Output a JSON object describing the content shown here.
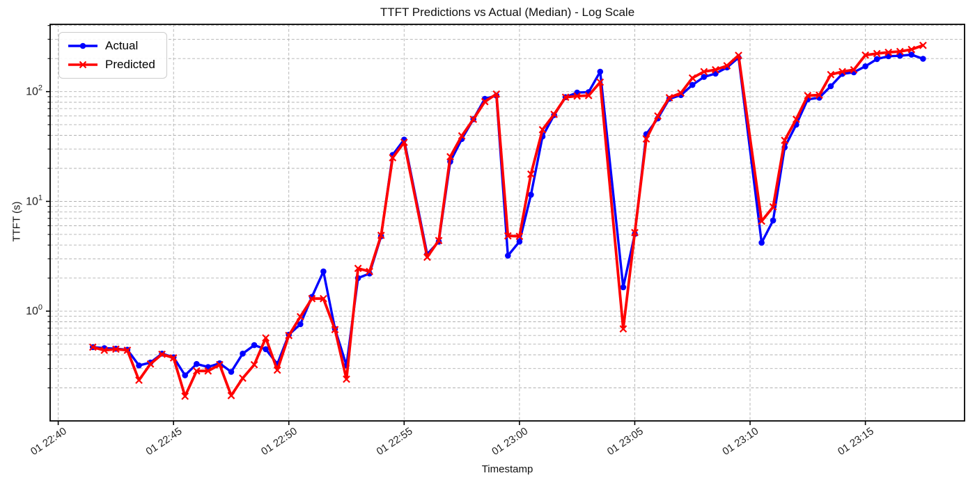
{
  "chart_data": {
    "type": "line",
    "title": "TTFT Predictions vs Actual (Median) - Log Scale",
    "xlabel": "Timestamp",
    "ylabel": "TTFT (s)",
    "yscale": "log",
    "grid": true,
    "background_color": "#ffffff",
    "grid_color": "#b0b0b0",
    "axis_color": "#000000",
    "xlim": [
      "22:39:39",
      "23:19:18"
    ],
    "ylim": [
      0.1,
      410
    ],
    "x_ticks": [
      {
        "t": "22:40:00",
        "label": "01 22:40"
      },
      {
        "t": "22:45:00",
        "label": "01 22:45"
      },
      {
        "t": "22:50:00",
        "label": "01 22:50"
      },
      {
        "t": "22:55:00",
        "label": "01 22:55"
      },
      {
        "t": "23:00:00",
        "label": "01 23:00"
      },
      {
        "t": "23:05:00",
        "label": "01 23:05"
      },
      {
        "t": "23:10:00",
        "label": "01 23:10"
      },
      {
        "t": "23:15:00",
        "label": "01 23:15"
      }
    ],
    "y_ticks": [
      {
        "v": 1,
        "base": "10",
        "exp": "0"
      },
      {
        "v": 10,
        "base": "10",
        "exp": "1"
      },
      {
        "v": 100,
        "base": "10",
        "exp": "2"
      }
    ],
    "x": [
      "22:41:30",
      "22:42:00",
      "22:42:30",
      "22:43:00",
      "22:43:30",
      "22:44:00",
      "22:44:30",
      "22:45:00",
      "22:45:30",
      "22:46:00",
      "22:46:30",
      "22:47:00",
      "22:47:30",
      "22:48:00",
      "22:48:30",
      "22:49:00",
      "22:49:30",
      "22:50:00",
      "22:50:30",
      "22:51:00",
      "22:51:30",
      "22:52:00",
      "22:52:30",
      "22:53:00",
      "22:53:30",
      "22:54:00",
      "22:54:30",
      "22:55:00",
      "22:56:00",
      "22:56:30",
      "22:57:00",
      "22:57:30",
      "22:58:00",
      "22:58:30",
      "22:59:00",
      "22:59:30",
      "23:00:00",
      "23:00:30",
      "23:01:00",
      "23:01:30",
      "23:02:00",
      "23:02:30",
      "23:03:00",
      "23:03:30",
      "23:04:30",
      "23:05:00",
      "23:05:30",
      "23:06:00",
      "23:06:30",
      "23:07:00",
      "23:07:30",
      "23:08:00",
      "23:08:30",
      "23:09:00",
      "23:09:30",
      "23:10:30",
      "23:11:00",
      "23:11:30",
      "23:12:00",
      "23:12:30",
      "23:13:00",
      "23:13:30",
      "23:14:00",
      "23:14:30",
      "23:15:00",
      "23:15:30",
      "23:16:00",
      "23:16:30",
      "23:17:00",
      "23:17:30"
    ],
    "series": [
      {
        "name": "Actual",
        "color": "#0000ff",
        "marker": "circle",
        "linewidth": 3.4,
        "values": [
          0.47,
          0.46,
          0.455,
          0.445,
          0.32,
          0.34,
          0.41,
          0.38,
          0.26,
          0.33,
          0.31,
          0.335,
          0.28,
          0.41,
          0.49,
          0.45,
          0.33,
          0.61,
          0.76,
          1.35,
          2.3,
          0.69,
          0.32,
          2.0,
          2.2,
          4.8,
          26.5,
          36.5,
          3.3,
          4.3,
          23,
          37,
          56,
          86,
          92,
          3.2,
          4.3,
          11.5,
          39,
          61,
          89,
          98,
          99,
          152,
          1.65,
          5.05,
          41,
          57,
          86,
          93,
          115,
          136,
          146,
          166,
          204,
          4.2,
          6.7,
          31,
          50,
          85,
          88,
          112,
          145,
          150,
          170,
          198,
          210,
          212,
          217,
          199
        ]
      },
      {
        "name": "Predicted",
        "color": "#ff0000",
        "marker": "x",
        "linewidth": 3.8,
        "values": [
          0.47,
          0.44,
          0.45,
          0.44,
          0.235,
          0.33,
          0.405,
          0.375,
          0.168,
          0.285,
          0.285,
          0.325,
          0.17,
          0.245,
          0.325,
          0.57,
          0.29,
          0.6,
          0.89,
          1.3,
          1.3,
          0.68,
          0.24,
          2.45,
          2.3,
          4.9,
          25,
          34.5,
          3.1,
          4.4,
          25.5,
          39.5,
          56,
          81,
          95,
          4.85,
          4.8,
          17.7,
          45,
          62,
          89,
          91,
          92,
          122,
          0.69,
          5.2,
          37,
          60,
          88,
          97,
          133,
          152,
          158,
          172,
          214,
          6.6,
          8.9,
          36,
          56,
          92,
          93,
          143,
          152,
          158,
          215,
          222,
          228,
          232,
          242,
          264
        ]
      }
    ],
    "legend": {
      "position": "upper-left"
    }
  }
}
